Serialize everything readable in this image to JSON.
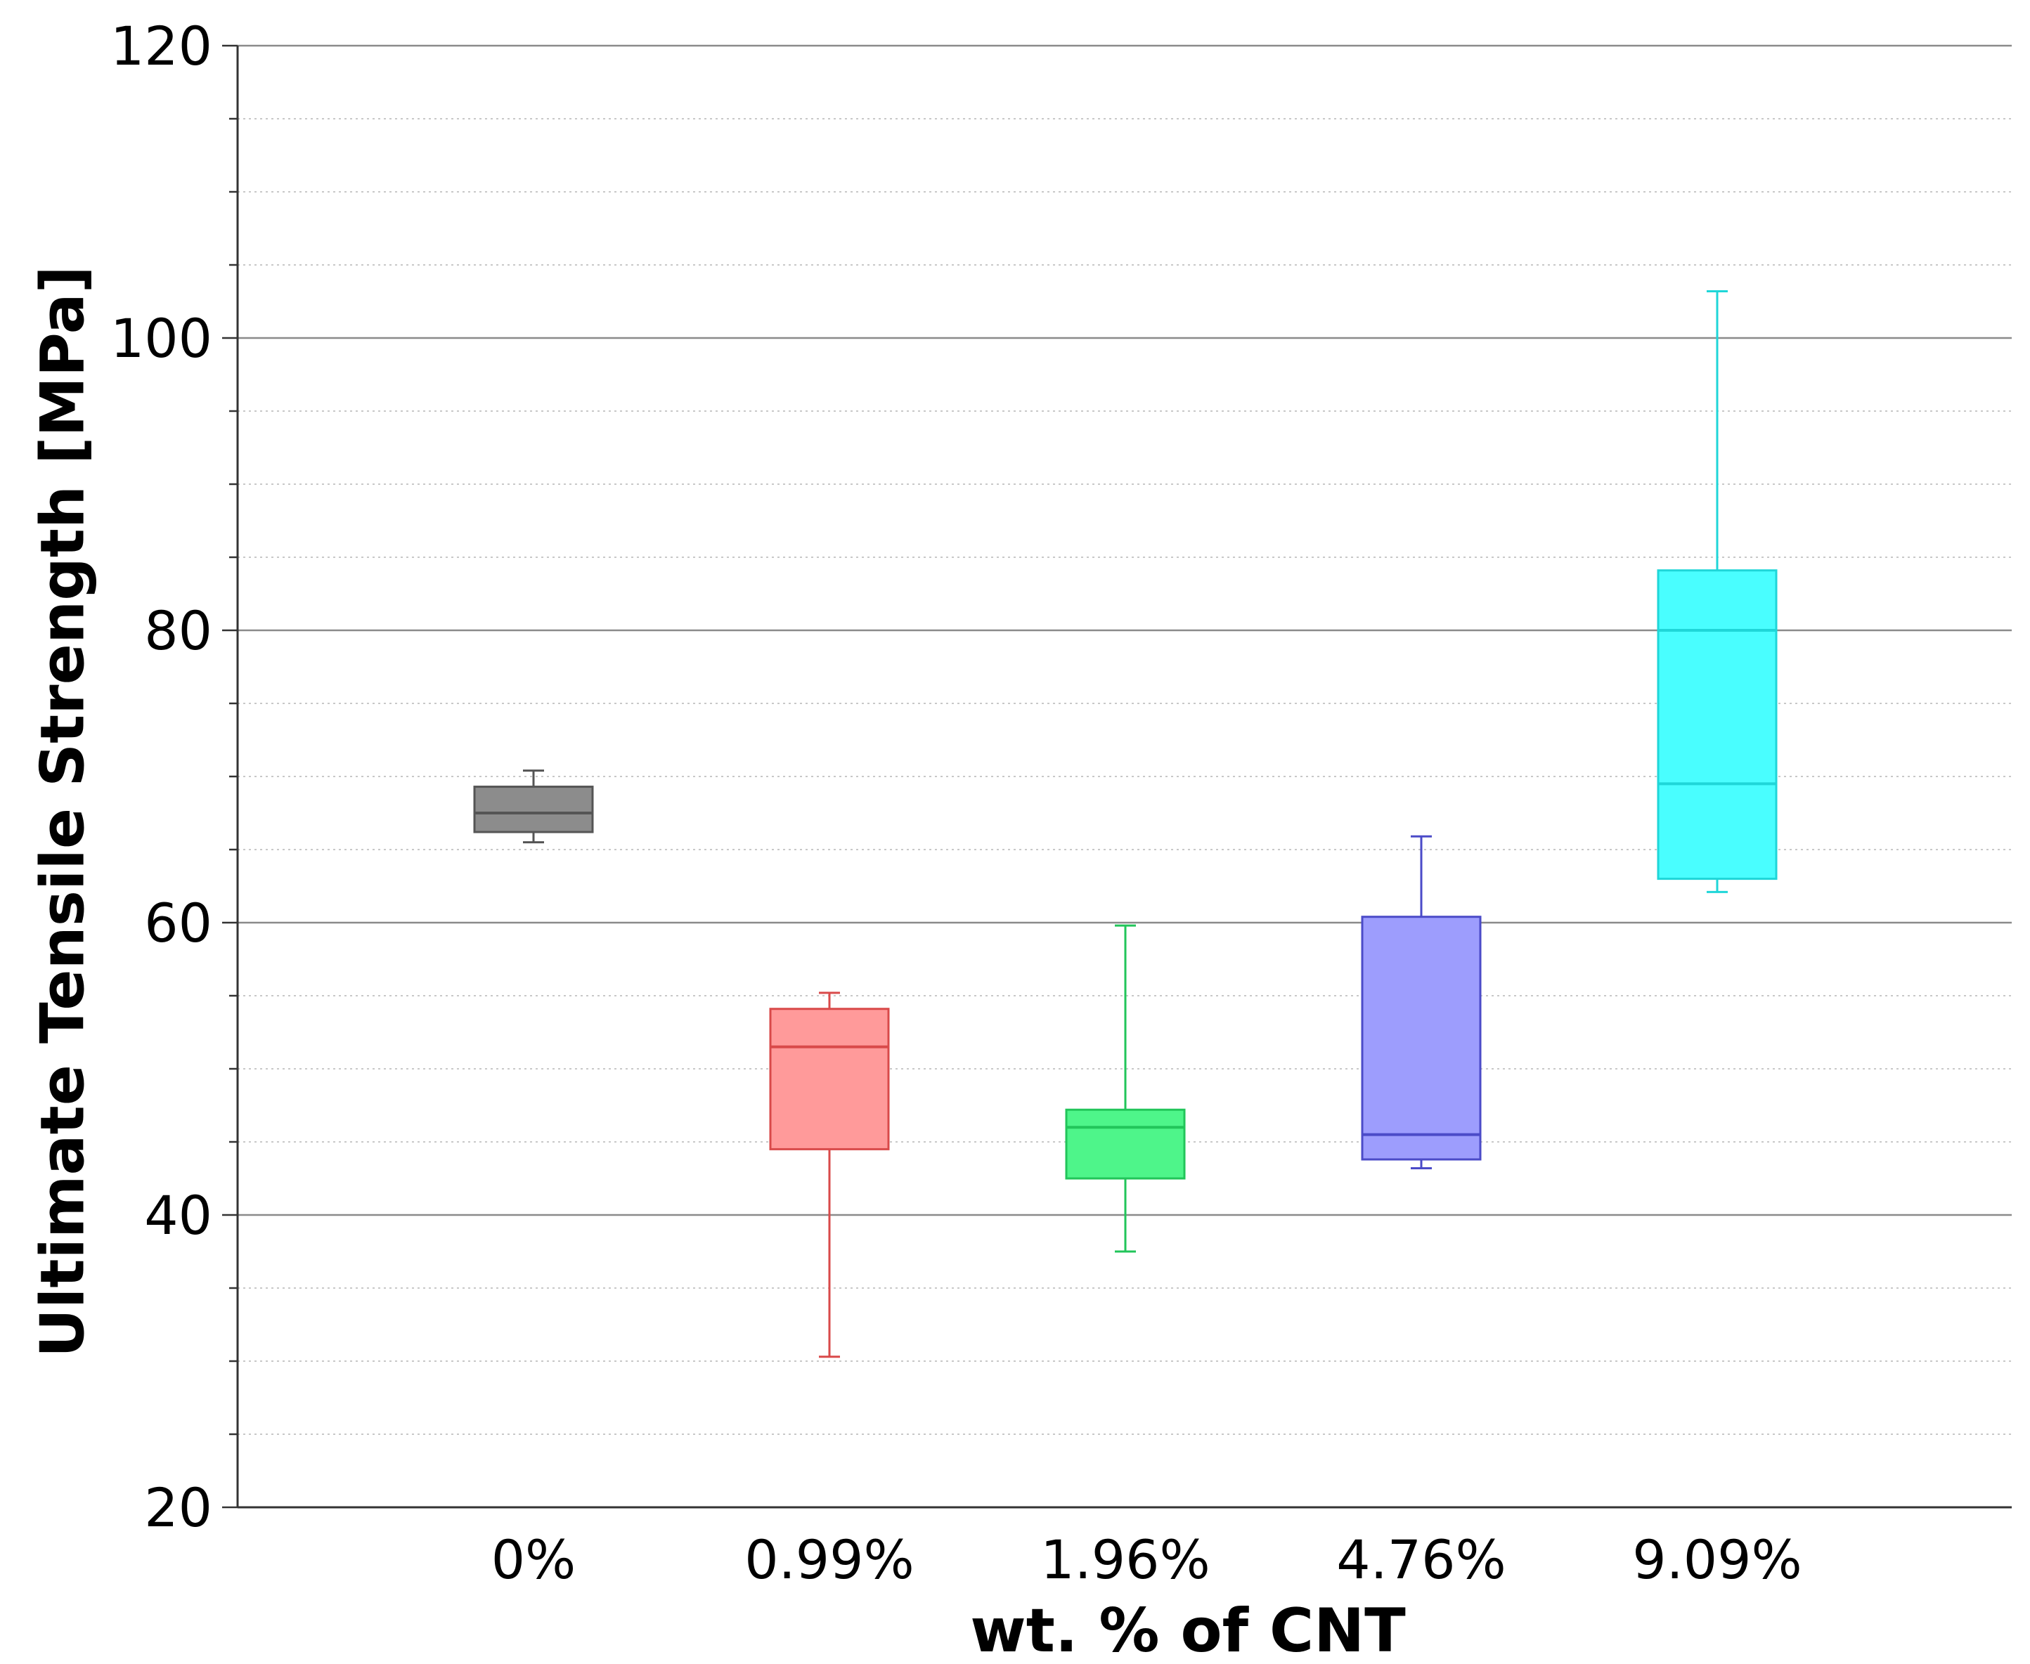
{
  "chart_data": {
    "type": "box",
    "title": "",
    "xlabel": "wt. % of CNT",
    "ylabel": "Ultimate Tensile Strength [MPa]",
    "ylim": [
      20,
      120
    ],
    "y_major_ticks": [
      20,
      40,
      60,
      80,
      100,
      120
    ],
    "y_minor_step": 5,
    "grid": "major solid, minor dotted",
    "categories": [
      "0%",
      "0.99%",
      "1.96%",
      "4.76%",
      "9.09%"
    ],
    "series": [
      {
        "name": "0%",
        "min": 65.5,
        "q1": 66.2,
        "median": 67.5,
        "q3": 69.3,
        "max": 70.4,
        "color": "#8c8c8c",
        "edge": "#555555"
      },
      {
        "name": "0.99%",
        "min": 30.3,
        "q1": 44.5,
        "median": 51.5,
        "q3": 54.1,
        "max": 55.2,
        "color": "#ff9a9a",
        "edge": "#d94a4a"
      },
      {
        "name": "1.96%",
        "min": 37.5,
        "q1": 42.5,
        "median": 46.0,
        "q3": 47.2,
        "max": 59.8,
        "color": "#4ef58a",
        "edge": "#22c55a"
      },
      {
        "name": "4.76%",
        "min": 43.2,
        "q1": 43.8,
        "median": 45.5,
        "q3": 60.4,
        "max": 65.9,
        "color": "#9d9dfd",
        "edge": "#4b4bc8"
      },
      {
        "name": "9.09%",
        "min": 62.1,
        "q1": 63.0,
        "median": 69.5,
        "q3": 84.1,
        "max": 103.2,
        "color": "#49feff",
        "edge": "#1fd6d8",
        "extra_line": 80.0
      }
    ]
  }
}
